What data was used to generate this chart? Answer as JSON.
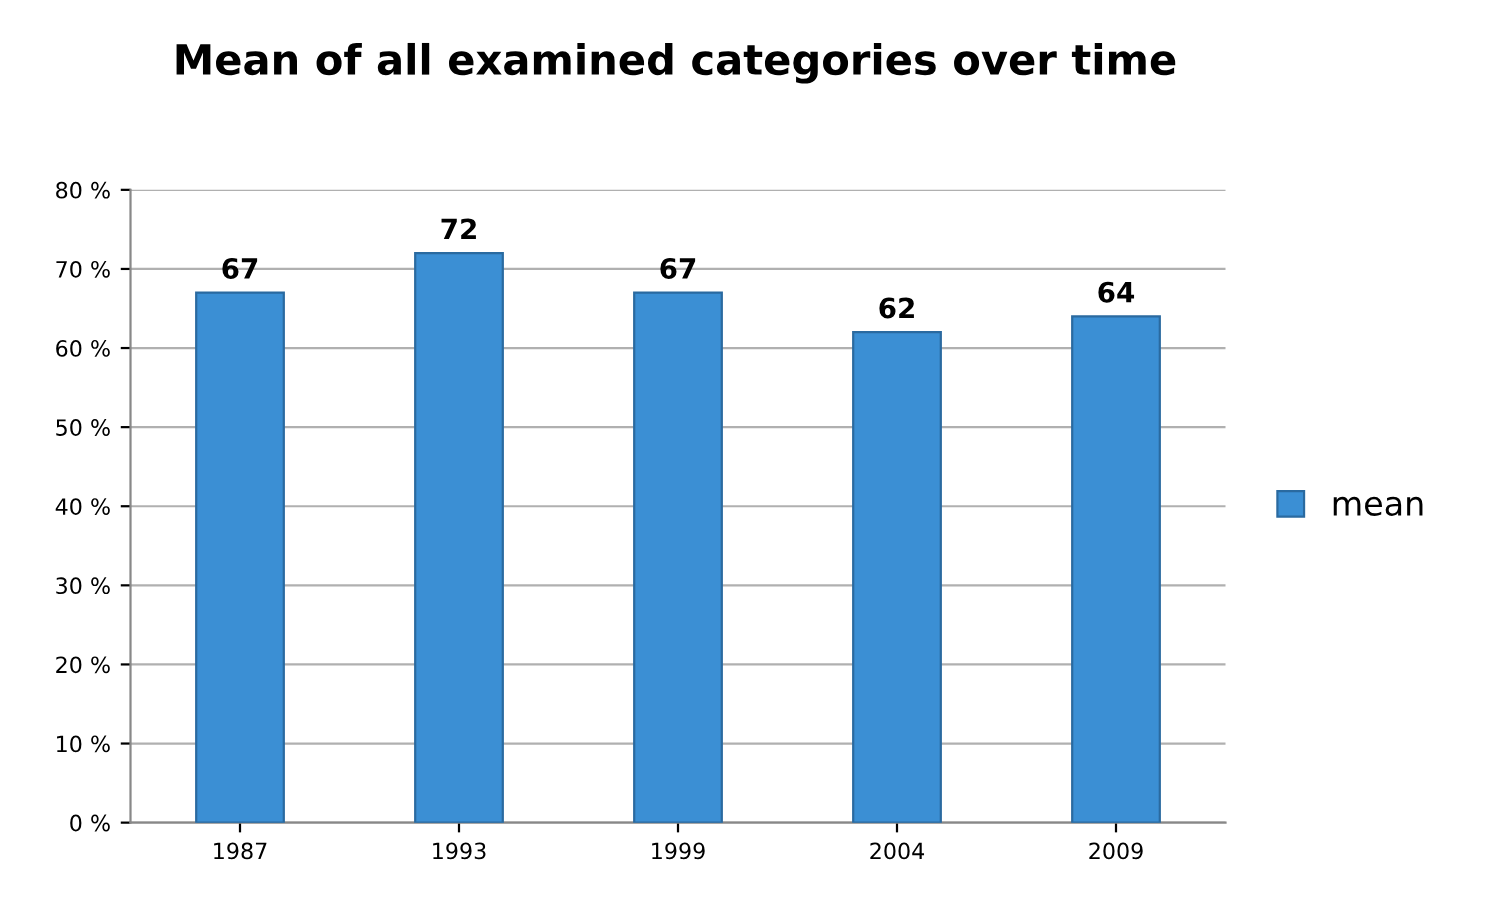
{
  "chart_data": {
    "type": "bar",
    "title": "Mean of all examined categories over time",
    "categories": [
      "1987",
      "1993",
      "1999",
      "2004",
      "2009"
    ],
    "series": [
      {
        "name": "mean",
        "color": "#3b8fd4",
        "values": [
          67,
          72,
          67,
          62,
          64
        ]
      }
    ],
    "ylim": [
      0,
      80
    ],
    "yticks": [
      {
        "value": 0,
        "label": "0 %"
      },
      {
        "value": 10,
        "label": "10 %"
      },
      {
        "value": 20,
        "label": "20 %"
      },
      {
        "value": 30,
        "label": "30 %"
      },
      {
        "value": 40,
        "label": "40 %"
      },
      {
        "value": 50,
        "label": "50 %"
      },
      {
        "value": 60,
        "label": "60 %"
      },
      {
        "value": 70,
        "label": "70 %"
      },
      {
        "value": 80,
        "label": "80 %"
      }
    ],
    "grid": "y",
    "legend": "right",
    "data_labels": true
  }
}
